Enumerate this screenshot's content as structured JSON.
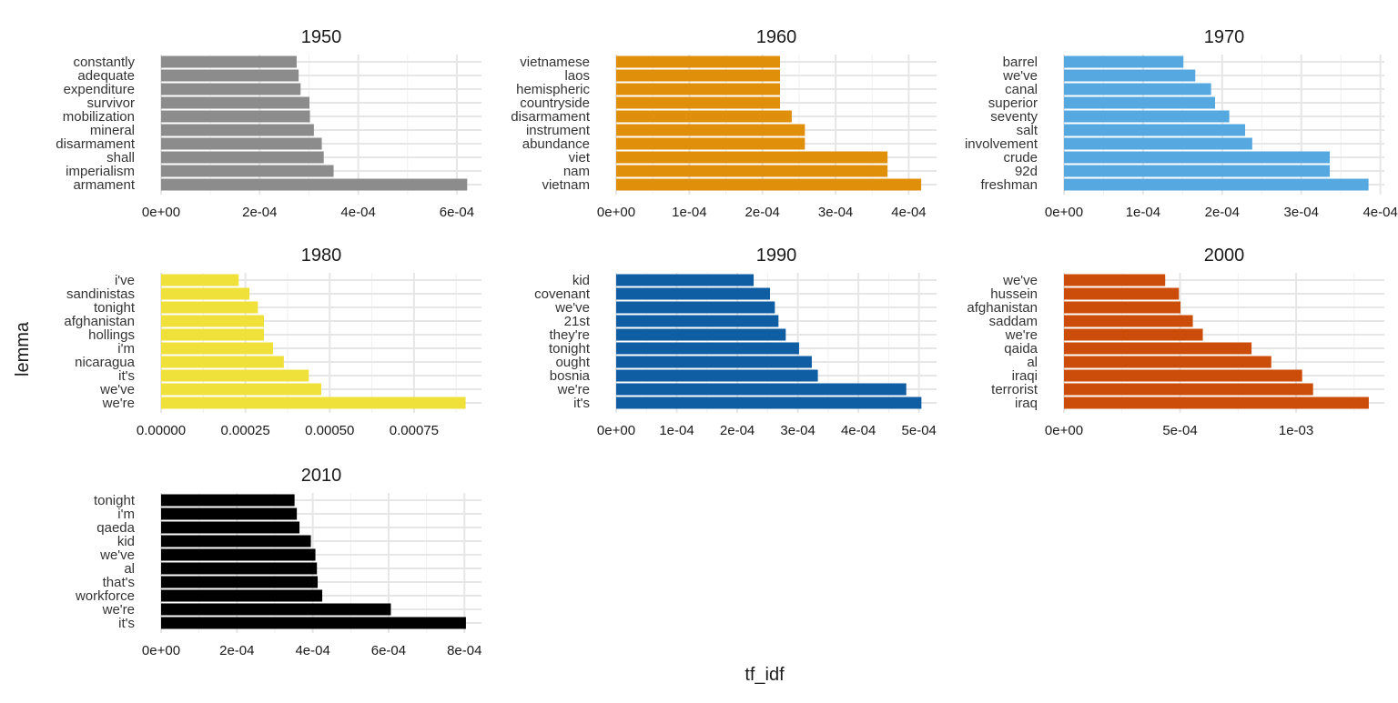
{
  "chart_data": {
    "type": "bar",
    "orientation": "horizontal",
    "xlabel": "tf_idf",
    "ylabel": "lemma",
    "facets": [
      {
        "title": "1950",
        "color": "#8c8c8c",
        "categories": [
          "constantly",
          "adequate",
          "expenditure",
          "survivor",
          "mobilization",
          "mineral",
          "disarmament",
          "shall",
          "imperialism",
          "armament"
        ],
        "values": [
          0.000275,
          0.000279,
          0.000283,
          0.000301,
          0.000302,
          0.00031,
          0.000326,
          0.00033,
          0.00035,
          0.000621
        ],
        "xlim": [
          0,
          0.00065
        ],
        "ticks": [
          0,
          0.0002,
          0.0004,
          0.0006
        ],
        "tick_labels": [
          "0e+00",
          "2e-04",
          "4e-04",
          "6e-04"
        ]
      },
      {
        "title": "1960",
        "color": "#e08f0b",
        "categories": [
          "vietnamese",
          "laos",
          "hemispheric",
          "countryside",
          "disarmament",
          "instrument",
          "abundance",
          "viet",
          "nam",
          "vietnam"
        ],
        "values": [
          0.000224,
          0.000224,
          0.000224,
          0.000224,
          0.00024,
          0.000258,
          0.000258,
          0.000371,
          0.000371,
          0.000417
        ],
        "xlim": [
          0,
          0.000438
        ],
        "ticks": [
          0,
          0.0001,
          0.0002,
          0.0003,
          0.0004
        ],
        "tick_labels": [
          "0e+00",
          "1e-04",
          "2e-04",
          "3e-04",
          "4e-04"
        ]
      },
      {
        "title": "1970",
        "color": "#56a8e0",
        "categories": [
          "barrel",
          "we've",
          "canal",
          "superior",
          "seventy",
          "salt",
          "involvement",
          "crude",
          "92d",
          "freshman"
        ],
        "values": [
          0.000151,
          0.000166,
          0.000186,
          0.000191,
          0.000209,
          0.000229,
          0.000238,
          0.000336,
          0.000336,
          0.000385
        ],
        "xlim": [
          0,
          0.000405
        ],
        "ticks": [
          0,
          0.0001,
          0.0002,
          0.0003,
          0.0004
        ],
        "tick_labels": [
          "0e+00",
          "1e-04",
          "2e-04",
          "3e-04",
          "4e-04"
        ]
      },
      {
        "title": "1980",
        "color": "#f0e03a",
        "categories": [
          "i've",
          "sandinistas",
          "tonight",
          "afghanistan",
          "hollings",
          "i'm",
          "nicaragua",
          "it's",
          "we've",
          "we're"
        ],
        "values": [
          0.00023,
          0.000262,
          0.000287,
          0.000305,
          0.000305,
          0.000332,
          0.000364,
          0.000438,
          0.000475,
          0.000903
        ],
        "xlim": [
          0,
          0.00095
        ],
        "ticks": [
          0,
          0.00025,
          0.0005,
          0.00075
        ],
        "tick_labels": [
          "0.00000",
          "0.00025",
          "0.00050",
          "0.00075"
        ]
      },
      {
        "title": "1990",
        "color": "#0f5da3",
        "categories": [
          "kid",
          "covenant",
          "we've",
          "21st",
          "they're",
          "tonight",
          "ought",
          "bosnia",
          "we're",
          "it's"
        ],
        "values": [
          0.000227,
          0.000254,
          0.000262,
          0.000268,
          0.00028,
          0.000302,
          0.000323,
          0.000333,
          0.000479,
          0.000504
        ],
        "xlim": [
          0,
          0.000529
        ],
        "ticks": [
          0,
          0.0001,
          0.0002,
          0.0003,
          0.0004,
          0.0005
        ],
        "tick_labels": [
          "0e+00",
          "1e-04",
          "2e-04",
          "3e-04",
          "4e-04",
          "5e-04"
        ]
      },
      {
        "title": "2000",
        "color": "#cc4d0a",
        "categories": [
          "we've",
          "hussein",
          "afghanistan",
          "saddam",
          "we're",
          "qaida",
          "al",
          "iraqi",
          "terrorist",
          "iraq"
        ],
        "values": [
          0.000436,
          0.000495,
          0.000502,
          0.000555,
          0.000598,
          0.000808,
          0.000893,
          0.001026,
          0.001073,
          0.001313
        ],
        "xlim": [
          0,
          0.00138
        ],
        "ticks": [
          0,
          0.0005,
          0.001
        ],
        "tick_labels": [
          "0e+00",
          "5e-04",
          "1e-03"
        ]
      },
      {
        "title": "2010",
        "color": "#000000",
        "categories": [
          "tonight",
          "i'm",
          "qaeda",
          "kid",
          "we've",
          "al",
          "that's",
          "workforce",
          "we're",
          "it's"
        ],
        "values": [
          0.000352,
          0.000358,
          0.000365,
          0.000395,
          0.000407,
          0.000411,
          0.000413,
          0.000425,
          0.000606,
          0.000804
        ],
        "xlim": [
          0,
          0.000845
        ],
        "ticks": [
          0,
          0.0002,
          0.0004,
          0.0006,
          0.0008
        ],
        "tick_labels": [
          "0e+00",
          "2e-04",
          "4e-04",
          "6e-04",
          "8e-04"
        ]
      }
    ]
  }
}
